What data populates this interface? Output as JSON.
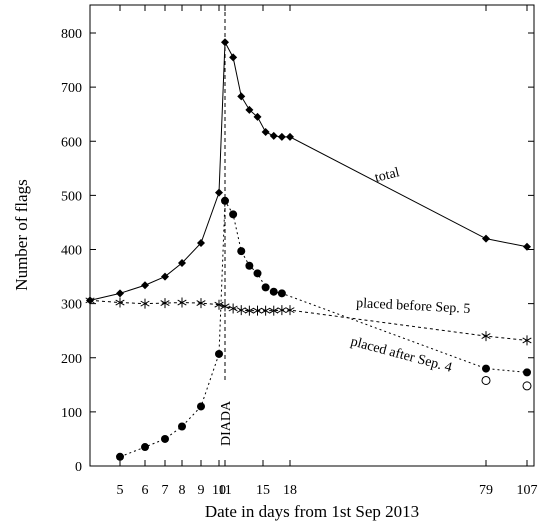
{
  "chart_data": {
    "type": "line",
    "xlabel": "Date in days from 1st Sep 2013",
    "ylabel": "Number of flags",
    "ylim": [
      0,
      850
    ],
    "y_ticks": [
      0,
      100,
      200,
      300,
      400,
      500,
      600,
      700,
      800
    ],
    "x_ticks": [
      5,
      6,
      7,
      8,
      9,
      10,
      11,
      15,
      18,
      79,
      107
    ],
    "x_axis_note": "broken / non-linear day axis",
    "grid": false,
    "event_line": {
      "x": 11,
      "label": "DIADA"
    },
    "series": [
      {
        "name": "total",
        "marker": "diamond",
        "x": [
          3,
          5,
          6,
          7,
          8,
          9,
          10,
          11,
          11.5,
          12,
          12.5,
          13,
          13.5,
          14,
          14.5,
          15,
          79,
          107
        ],
        "values": [
          306,
          319,
          334,
          350,
          375,
          412,
          505,
          783,
          755,
          683,
          658,
          645,
          617,
          610,
          608,
          608,
          420,
          405
        ]
      },
      {
        "name": "placed before Sep. 5",
        "marker": "asterisk",
        "x": [
          3,
          5,
          6,
          7,
          8,
          9,
          10,
          11,
          11.5,
          12,
          12.5,
          13,
          13.5,
          14,
          14.5,
          15,
          79,
          107
        ],
        "values": [
          306,
          302,
          300,
          301,
          302,
          301,
          298,
          295,
          291,
          288,
          287,
          287,
          287,
          287,
          288,
          288,
          240,
          232
        ]
      },
      {
        "name": "placed after Sep. 4",
        "marker": "filled-circle",
        "x": [
          5,
          6,
          7,
          8,
          9,
          10,
          11,
          11.5,
          12,
          12.5,
          13,
          13.5,
          14,
          14.5,
          79,
          107
        ],
        "values": [
          17,
          35,
          50,
          73,
          110,
          207,
          490,
          465,
          397,
          370,
          356,
          330,
          322,
          319,
          180,
          173
        ]
      },
      {
        "name": "",
        "marker": "open-circle",
        "x": [
          79,
          107
        ],
        "values": [
          158,
          148
        ]
      }
    ],
    "annotations": [
      "total",
      "placed before Sep. 5",
      "placed after Sep. 4"
    ]
  }
}
